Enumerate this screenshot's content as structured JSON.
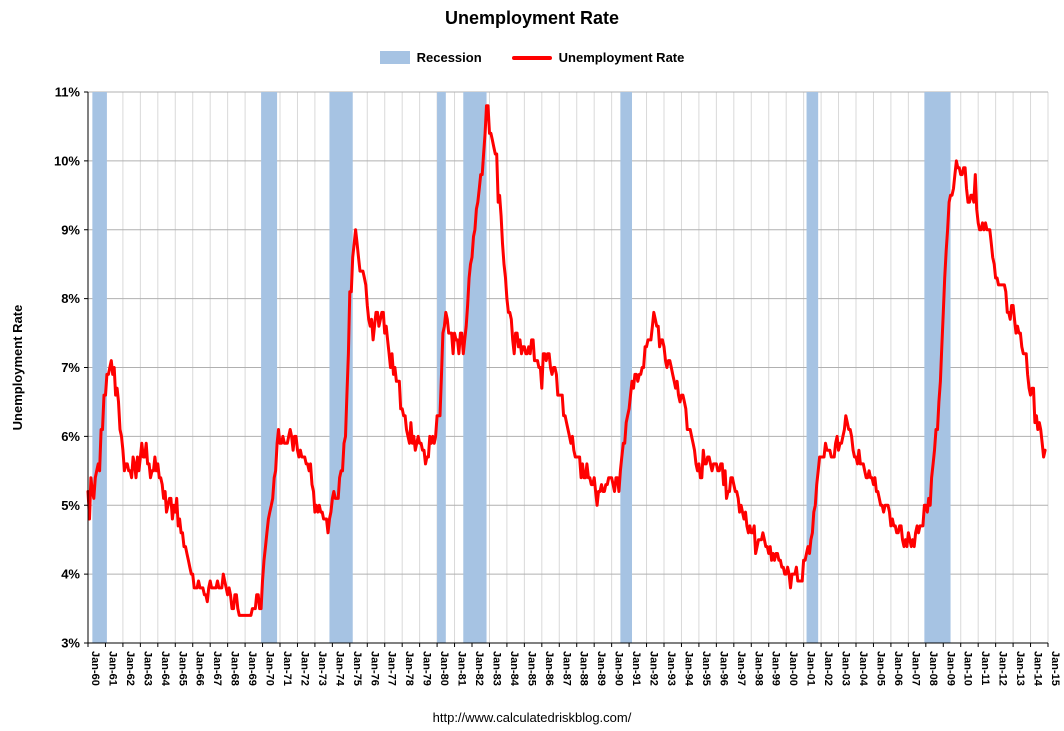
{
  "title": "Unemployment Rate",
  "legend": {
    "recession_label": "Recession",
    "series_label": "Unemployment Rate"
  },
  "footer_url": "http://www.calculatedriskblog.com/",
  "colors": {
    "recession_band": "#a6c3e3",
    "line": "#ff0000",
    "gridline_h": "#b0b0b0",
    "gridline_v": "#d9d9d9",
    "axis": "#000000"
  },
  "chart_data": {
    "type": "line",
    "title": "Unemployment Rate",
    "xlabel": "",
    "ylabel": "Unemployment Rate",
    "ylim": [
      3,
      11
    ],
    "xlim": [
      1960,
      2015
    ],
    "grid": true,
    "legend_position": "top-center",
    "yticks": [
      3,
      4,
      5,
      6,
      7,
      8,
      9,
      10,
      11
    ],
    "ytick_labels": [
      "3%",
      "4%",
      "5%",
      "6%",
      "7%",
      "8%",
      "9%",
      "10%",
      "11%"
    ],
    "xtick_labels": [
      "Jan-60",
      "Jan-61",
      "Jan-62",
      "Jan-63",
      "Jan-64",
      "Jan-65",
      "Jan-66",
      "Jan-67",
      "Jan-68",
      "Jan-69",
      "Jan-70",
      "Jan-71",
      "Jan-72",
      "Jan-73",
      "Jan-74",
      "Jan-75",
      "Jan-76",
      "Jan-77",
      "Jan-78",
      "Jan-79",
      "Jan-80",
      "Jan-81",
      "Jan-82",
      "Jan-83",
      "Jan-84",
      "Jan-85",
      "Jan-86",
      "Jan-87",
      "Jan-88",
      "Jan-89",
      "Jan-90",
      "Jan-91",
      "Jan-92",
      "Jan-93",
      "Jan-94",
      "Jan-95",
      "Jan-96",
      "Jan-97",
      "Jan-98",
      "Jan-99",
      "Jan-00",
      "Jan-01",
      "Jan-02",
      "Jan-03",
      "Jan-04",
      "Jan-05",
      "Jan-06",
      "Jan-07",
      "Jan-08",
      "Jan-09",
      "Jan-10",
      "Jan-11",
      "Jan-12",
      "Jan-13",
      "Jan-14",
      "Jan-15"
    ],
    "recessions": [
      {
        "start": 1960.25,
        "end": 1961.083
      },
      {
        "start": 1969.917,
        "end": 1970.833
      },
      {
        "start": 1973.833,
        "end": 1975.167
      },
      {
        "start": 1980.0,
        "end": 1980.5
      },
      {
        "start": 1981.5,
        "end": 1982.833
      },
      {
        "start": 1990.5,
        "end": 1991.167
      },
      {
        "start": 2001.167,
        "end": 2001.833
      },
      {
        "start": 2007.917,
        "end": 2009.417
      }
    ],
    "series": [
      {
        "name": "Unemployment Rate",
        "color": "#ff0000",
        "frequency": "monthly",
        "start_year": 1960,
        "start_month": 1,
        "values": [
          5.2,
          4.8,
          5.4,
          5.2,
          5.1,
          5.4,
          5.5,
          5.6,
          5.5,
          6.1,
          6.1,
          6.6,
          6.6,
          6.9,
          6.9,
          7.0,
          7.1,
          6.9,
          7.0,
          6.6,
          6.7,
          6.5,
          6.1,
          6.0,
          5.8,
          5.5,
          5.6,
          5.6,
          5.5,
          5.5,
          5.4,
          5.7,
          5.6,
          5.4,
          5.7,
          5.5,
          5.7,
          5.9,
          5.7,
          5.7,
          5.9,
          5.6,
          5.6,
          5.4,
          5.5,
          5.5,
          5.7,
          5.5,
          5.6,
          5.4,
          5.4,
          5.3,
          5.1,
          5.2,
          4.9,
          5.0,
          5.1,
          5.1,
          4.8,
          5.0,
          4.9,
          5.1,
          4.7,
          4.8,
          4.6,
          4.6,
          4.4,
          4.4,
          4.3,
          4.2,
          4.1,
          4.0,
          4.0,
          3.8,
          3.8,
          3.8,
          3.9,
          3.8,
          3.8,
          3.8,
          3.7,
          3.7,
          3.6,
          3.8,
          3.9,
          3.8,
          3.8,
          3.8,
          3.8,
          3.9,
          3.8,
          3.8,
          3.8,
          4.0,
          3.9,
          3.8,
          3.7,
          3.8,
          3.7,
          3.5,
          3.5,
          3.7,
          3.7,
          3.5,
          3.4,
          3.4,
          3.4,
          3.4,
          3.4,
          3.4,
          3.4,
          3.4,
          3.4,
          3.5,
          3.5,
          3.5,
          3.7,
          3.7,
          3.5,
          3.5,
          3.9,
          4.2,
          4.4,
          4.6,
          4.8,
          4.9,
          5.0,
          5.1,
          5.4,
          5.5,
          5.9,
          6.1,
          5.9,
          5.9,
          6.0,
          5.9,
          5.9,
          5.9,
          6.0,
          6.1,
          6.0,
          5.8,
          6.0,
          6.0,
          5.8,
          5.7,
          5.8,
          5.7,
          5.7,
          5.7,
          5.6,
          5.6,
          5.5,
          5.6,
          5.3,
          5.2,
          4.9,
          5.0,
          4.9,
          5.0,
          4.9,
          4.9,
          4.8,
          4.8,
          4.8,
          4.6,
          4.8,
          4.9,
          5.1,
          5.2,
          5.1,
          5.1,
          5.1,
          5.4,
          5.5,
          5.5,
          5.9,
          6.0,
          6.6,
          7.2,
          8.1,
          8.1,
          8.6,
          8.8,
          9.0,
          8.8,
          8.6,
          8.4,
          8.4,
          8.4,
          8.3,
          8.2,
          7.9,
          7.7,
          7.6,
          7.7,
          7.4,
          7.6,
          7.8,
          7.8,
          7.6,
          7.7,
          7.8,
          7.8,
          7.5,
          7.6,
          7.4,
          7.2,
          7.0,
          7.2,
          6.9,
          7.0,
          6.8,
          6.8,
          6.8,
          6.4,
          6.4,
          6.3,
          6.3,
          6.1,
          6.0,
          5.9,
          6.2,
          5.9,
          6.0,
          5.8,
          5.9,
          6.0,
          5.9,
          5.9,
          5.8,
          5.8,
          5.6,
          5.7,
          5.7,
          6.0,
          5.9,
          6.0,
          5.9,
          6.0,
          6.3,
          6.3,
          6.3,
          6.9,
          7.5,
          7.6,
          7.8,
          7.7,
          7.5,
          7.5,
          7.5,
          7.2,
          7.5,
          7.4,
          7.4,
          7.2,
          7.5,
          7.5,
          7.2,
          7.4,
          7.6,
          7.9,
          8.3,
          8.5,
          8.6,
          8.9,
          9.0,
          9.3,
          9.4,
          9.6,
          9.8,
          9.8,
          10.1,
          10.4,
          10.8,
          10.8,
          10.4,
          10.4,
          10.3,
          10.2,
          10.1,
          10.1,
          9.4,
          9.5,
          9.2,
          8.8,
          8.5,
          8.3,
          8.0,
          7.8,
          7.8,
          7.7,
          7.4,
          7.2,
          7.5,
          7.5,
          7.3,
          7.4,
          7.2,
          7.3,
          7.3,
          7.2,
          7.2,
          7.3,
          7.2,
          7.4,
          7.4,
          7.1,
          7.1,
          7.1,
          7.0,
          7.0,
          6.7,
          7.2,
          7.2,
          7.1,
          7.2,
          7.2,
          7.0,
          6.9,
          7.0,
          7.0,
          6.9,
          6.6,
          6.6,
          6.6,
          6.6,
          6.3,
          6.3,
          6.2,
          6.1,
          6.0,
          5.9,
          6.0,
          5.8,
          5.7,
          5.7,
          5.7,
          5.7,
          5.4,
          5.6,
          5.4,
          5.4,
          5.6,
          5.4,
          5.4,
          5.3,
          5.3,
          5.4,
          5.2,
          5.0,
          5.2,
          5.2,
          5.3,
          5.2,
          5.2,
          5.3,
          5.3,
          5.4,
          5.4,
          5.4,
          5.3,
          5.2,
          5.4,
          5.4,
          5.2,
          5.5,
          5.7,
          5.9,
          5.9,
          6.2,
          6.3,
          6.4,
          6.6,
          6.8,
          6.7,
          6.9,
          6.9,
          6.8,
          6.9,
          6.9,
          7.0,
          7.0,
          7.3,
          7.3,
          7.4,
          7.4,
          7.4,
          7.6,
          7.8,
          7.7,
          7.6,
          7.6,
          7.3,
          7.4,
          7.4,
          7.3,
          7.1,
          7.0,
          7.1,
          7.1,
          7.0,
          6.9,
          6.8,
          6.7,
          6.8,
          6.6,
          6.5,
          6.6,
          6.6,
          6.5,
          6.4,
          6.1,
          6.1,
          6.1,
          6.0,
          5.9,
          5.8,
          5.6,
          5.5,
          5.6,
          5.4,
          5.4,
          5.8,
          5.6,
          5.6,
          5.7,
          5.7,
          5.6,
          5.5,
          5.6,
          5.6,
          5.6,
          5.5,
          5.5,
          5.6,
          5.6,
          5.3,
          5.5,
          5.1,
          5.2,
          5.2,
          5.4,
          5.4,
          5.3,
          5.2,
          5.2,
          5.1,
          4.9,
          5.0,
          4.9,
          4.8,
          4.9,
          4.7,
          4.6,
          4.7,
          4.6,
          4.6,
          4.7,
          4.3,
          4.4,
          4.5,
          4.5,
          4.5,
          4.6,
          4.5,
          4.4,
          4.4,
          4.3,
          4.4,
          4.2,
          4.3,
          4.2,
          4.3,
          4.3,
          4.2,
          4.2,
          4.1,
          4.1,
          4.0,
          4.0,
          4.1,
          4.0,
          3.8,
          4.0,
          4.0,
          4.0,
          4.1,
          3.9,
          3.9,
          3.9,
          3.9,
          4.2,
          4.2,
          4.3,
          4.4,
          4.3,
          4.5,
          4.6,
          4.9,
          5.0,
          5.3,
          5.5,
          5.7,
          5.7,
          5.7,
          5.7,
          5.9,
          5.8,
          5.8,
          5.8,
          5.7,
          5.7,
          5.7,
          5.9,
          6.0,
          5.8,
          5.9,
          5.9,
          6.0,
          6.1,
          6.3,
          6.2,
          6.1,
          6.1,
          6.0,
          5.8,
          5.7,
          5.7,
          5.6,
          5.8,
          5.6,
          5.6,
          5.6,
          5.5,
          5.4,
          5.4,
          5.5,
          5.4,
          5.4,
          5.3,
          5.4,
          5.2,
          5.2,
          5.1,
          5.0,
          5.0,
          4.9,
          5.0,
          5.0,
          5.0,
          4.9,
          4.7,
          4.8,
          4.7,
          4.7,
          4.6,
          4.6,
          4.7,
          4.7,
          4.5,
          4.4,
          4.5,
          4.4,
          4.6,
          4.5,
          4.4,
          4.5,
          4.4,
          4.6,
          4.7,
          4.6,
          4.7,
          4.7,
          4.7,
          5.0,
          5.0,
          4.9,
          5.1,
          5.0,
          5.4,
          5.6,
          5.8,
          6.1,
          6.1,
          6.5,
          6.8,
          7.3,
          7.8,
          8.3,
          8.7,
          9.0,
          9.4,
          9.5,
          9.5,
          9.6,
          9.8,
          10.0,
          9.9,
          9.9,
          9.8,
          9.8,
          9.9,
          9.9,
          9.6,
          9.4,
          9.4,
          9.5,
          9.5,
          9.4,
          9.8,
          9.3,
          9.1,
          9.0,
          9.0,
          9.1,
          9.0,
          9.1,
          9.0,
          9.0,
          9.0,
          8.8,
          8.6,
          8.5,
          8.3,
          8.3,
          8.2,
          8.2,
          8.2,
          8.2,
          8.2,
          8.1,
          7.8,
          7.8,
          7.7,
          7.9,
          7.9,
          7.7,
          7.5,
          7.6,
          7.5,
          7.5,
          7.3,
          7.2,
          7.2,
          7.2,
          6.9,
          6.7,
          6.6,
          6.7,
          6.7,
          6.2,
          6.3,
          6.1,
          6.2,
          6.1,
          5.9,
          5.7,
          5.8
        ]
      }
    ]
  }
}
